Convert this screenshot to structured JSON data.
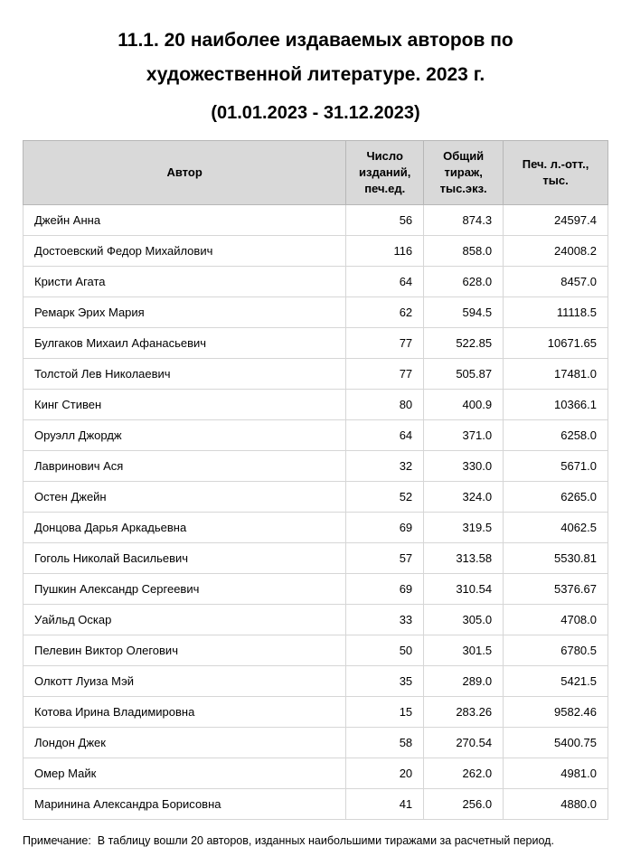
{
  "page": {
    "title": "11.1. 20 наиболее издаваемых авторов по\nхудожественной литературе. 2023 г.",
    "subtitle": "(01.01.2023 - 31.12.2023)",
    "note": "Примечание:  В таблицу вошли 20 авторов, изданных наибольшими тиражами за расчетный период."
  },
  "colors": {
    "header_background": "#d9d9d9",
    "border": "#b7b7b7",
    "text": "#000000"
  },
  "table": {
    "columns": [
      "Автор",
      "Число\nизданий,\nпеч.ед.",
      "Общий\nтираж,\nтыс.экз.",
      "Печ. л.-отт.,\nтыс."
    ],
    "rows": [
      [
        "Джейн Анна",
        "56",
        "874.3",
        "24597.4"
      ],
      [
        "Достоевский Федор Михайлович",
        "116",
        "858.0",
        "24008.2"
      ],
      [
        "Кристи Агата",
        "64",
        "628.0",
        "8457.0"
      ],
      [
        "Ремарк Эрих Мария",
        "62",
        "594.5",
        "11118.5"
      ],
      [
        "Булгаков Михаил Афанасьевич",
        "77",
        "522.85",
        "10671.65"
      ],
      [
        "Толстой Лев Николаевич",
        "77",
        "505.87",
        "17481.0"
      ],
      [
        "Кинг Стивен",
        "80",
        "400.9",
        "10366.1"
      ],
      [
        "Оруэлл Джордж",
        "64",
        "371.0",
        "6258.0"
      ],
      [
        "Лавринович Ася",
        "32",
        "330.0",
        "5671.0"
      ],
      [
        "Остен Джейн",
        "52",
        "324.0",
        "6265.0"
      ],
      [
        "Донцова Дарья Аркадьевна",
        "69",
        "319.5",
        "4062.5"
      ],
      [
        "Гоголь Николай Васильевич",
        "57",
        "313.58",
        "5530.81"
      ],
      [
        "Пушкин Александр Сергеевич",
        "69",
        "310.54",
        "5376.67"
      ],
      [
        "Уайльд Оскар",
        "33",
        "305.0",
        "4708.0"
      ],
      [
        "Пелевин Виктор Олегович",
        "50",
        "301.5",
        "6780.5"
      ],
      [
        "Олкотт Луиза Мэй",
        "35",
        "289.0",
        "5421.5"
      ],
      [
        "Котова Ирина Владимировна",
        "15",
        "283.26",
        "9582.46"
      ],
      [
        "Лондон Джек",
        "58",
        "270.54",
        "5400.75"
      ],
      [
        "Омер Майк",
        "20",
        "262.0",
        "4981.0"
      ],
      [
        "Маринина Александра Борисовна",
        "41",
        "256.0",
        "4880.0"
      ]
    ]
  },
  "chart_data": {
    "type": "table",
    "title": "11.1. 20 наиболее издаваемых авторов по художественной литературе. 2023 г. (01.01.2023 - 31.12.2023)",
    "columns": [
      "Автор",
      "Число изданий, печ.ед.",
      "Общий тираж, тыс.экз.",
      "Печ. л.-отт., тыс."
    ],
    "rows": [
      [
        "Джейн Анна",
        56,
        874.3,
        24597.4
      ],
      [
        "Достоевский Федор Михайлович",
        116,
        858.0,
        24008.2
      ],
      [
        "Кристи Агата",
        64,
        628.0,
        8457.0
      ],
      [
        "Ремарк Эрих Мария",
        62,
        594.5,
        11118.5
      ],
      [
        "Булгаков Михаил Афанасьевич",
        77,
        522.85,
        10671.65
      ],
      [
        "Толстой Лев Николаевич",
        77,
        505.87,
        17481.0
      ],
      [
        "Кинг Стивен",
        80,
        400.9,
        10366.1
      ],
      [
        "Оруэлл Джордж",
        64,
        371.0,
        6258.0
      ],
      [
        "Лавринович Ася",
        32,
        330.0,
        5671.0
      ],
      [
        "Остен Джейн",
        52,
        324.0,
        6265.0
      ],
      [
        "Донцова Дарья Аркадьевна",
        69,
        319.5,
        4062.5
      ],
      [
        "Гоголь Николай Васильевич",
        57,
        313.58,
        5530.81
      ],
      [
        "Пушкин Александр Сергеевич",
        69,
        310.54,
        5376.67
      ],
      [
        "Уайльд Оскар",
        33,
        305.0,
        4708.0
      ],
      [
        "Пелевин Виктор Олегович",
        50,
        301.5,
        6780.5
      ],
      [
        "Олкотт Луиза Мэй",
        35,
        289.0,
        5421.5
      ],
      [
        "Котова Ирина Владимировна",
        15,
        283.26,
        9582.46
      ],
      [
        "Лондон Джек",
        58,
        270.54,
        5400.75
      ],
      [
        "Омер Майк",
        20,
        262.0,
        4981.0
      ],
      [
        "Маринина Александра Борисовна",
        41,
        256.0,
        4880.0
      ]
    ]
  }
}
